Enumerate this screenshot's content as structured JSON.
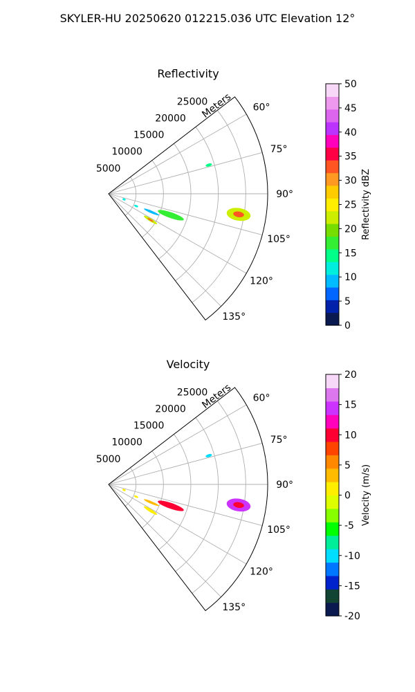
{
  "figure": {
    "title": "SKYLER-HU  20250620  012215.036 UTC Elevation 12°"
  },
  "chart_data": [
    {
      "type": "polar-sector",
      "title": "Reflectivity",
      "range_axis_label": "Meters",
      "range_ticks": [
        5000,
        10000,
        15000,
        20000,
        25000
      ],
      "rmax": 29000,
      "angle_ticks_deg": [
        60,
        75,
        90,
        105,
        120,
        135
      ],
      "sector_deg": [
        52.5,
        142.5
      ],
      "grid": true,
      "colorbar": {
        "label": "Reflectivity dBZ",
        "min": 0,
        "max": 50,
        "ticks": [
          0,
          5,
          10,
          15,
          20,
          25,
          30,
          35,
          40,
          45,
          50
        ],
        "colors": [
          "#0a1a50",
          "#0022aa",
          "#0066ff",
          "#00bbff",
          "#00eedd",
          "#00ff88",
          "#33ee33",
          "#77dd00",
          "#ccee00",
          "#ffee00",
          "#ffcc00",
          "#ff9922",
          "#ff5522",
          "#ff0044",
          "#ff00bb",
          "#bb33ff",
          "#dd66ee",
          "#ee99ee",
          "#f8d8f8"
        ]
      },
      "echoes": [
        {
          "az": 74,
          "range": 19000,
          "value": 14,
          "extent_r": 600,
          "extent_az": 1.6
        },
        {
          "az": 99,
          "range": 24000,
          "value": 22,
          "extent_r": 2200,
          "extent_az": 5.5,
          "core_value": 34
        },
        {
          "az": 109,
          "range": 12000,
          "value": 18,
          "extent_r": 2500,
          "extent_az": 5
        },
        {
          "az": 113,
          "range": 8500,
          "value": 10,
          "extent_r": 1500,
          "extent_az": 3
        },
        {
          "az": 122,
          "range": 9000,
          "value": 22,
          "extent_r": 1400,
          "extent_az": 3.5,
          "core_value": 32
        },
        {
          "az": 114,
          "range": 5500,
          "value": 12,
          "extent_r": 400,
          "extent_az": 2
        },
        {
          "az": 110,
          "range": 3000,
          "value": 11,
          "extent_r": 300,
          "extent_az": 1.5
        }
      ]
    },
    {
      "type": "polar-sector",
      "title": "Velocity",
      "range_axis_label": "Meters",
      "range_ticks": [
        5000,
        10000,
        15000,
        20000,
        25000
      ],
      "rmax": 29000,
      "angle_ticks_deg": [
        60,
        75,
        90,
        105,
        120,
        135
      ],
      "sector_deg": [
        52.5,
        142.5
      ],
      "grid": true,
      "colorbar": {
        "label": "Velocity (m/s)",
        "min": -20,
        "max": 20,
        "ticks": [
          -20,
          -15,
          -10,
          -5,
          0,
          5,
          10,
          15,
          20
        ],
        "colors": [
          "#0a1a50",
          "#114433",
          "#0022cc",
          "#0077ff",
          "#00ddff",
          "#00ee99",
          "#00ff00",
          "#88ff00",
          "#ddff00",
          "#ffee00",
          "#ffbb00",
          "#ff8800",
          "#ff4400",
          "#ff0033",
          "#ff00bb",
          "#cc33ff",
          "#dd77ee",
          "#f8d8f8"
        ]
      },
      "echoes": [
        {
          "az": 74,
          "range": 19000,
          "value": -11,
          "extent_r": 600,
          "extent_az": 1.6
        },
        {
          "az": 99,
          "range": 24000,
          "value": 14,
          "extent_r": 2200,
          "extent_az": 5.5,
          "core_value": 11
        },
        {
          "az": 109,
          "range": 12000,
          "value": 9,
          "extent_r": 2500,
          "extent_az": 5
        },
        {
          "az": 113,
          "range": 8500,
          "value": 4,
          "extent_r": 1500,
          "extent_az": 3
        },
        {
          "az": 122,
          "range": 9000,
          "value": 1,
          "extent_r": 1400,
          "extent_az": 3.5
        },
        {
          "az": 114,
          "range": 5500,
          "value": 1,
          "extent_r": 400,
          "extent_az": 2
        },
        {
          "az": 110,
          "range": 3000,
          "value": 2,
          "extent_r": 300,
          "extent_az": 1.5
        }
      ]
    }
  ]
}
